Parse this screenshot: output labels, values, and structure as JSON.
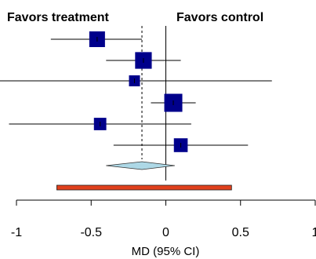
{
  "chart_data": {
    "type": "forest",
    "header_left": "Favors treatment",
    "header_right": "Favors control",
    "xlabel": "MD (95% CI)",
    "xlim": [
      -1,
      1
    ],
    "xticks": [
      -1,
      -0.5,
      0,
      0.5,
      1
    ],
    "xtick_labels": [
      "-1",
      "-0.5",
      "0",
      "0.5",
      "1"
    ],
    "reference_line": 0,
    "pooled_estimate_line": -0.16,
    "studies": [
      {
        "estimate": -0.46,
        "ci": [
          -0.77,
          -0.16
        ],
        "weight": 1.0
      },
      {
        "estimate": -0.15,
        "ci": [
          -0.4,
          0.1
        ],
        "weight": 1.1
      },
      {
        "estimate": -0.21,
        "ci": [
          -1.12,
          0.71
        ],
        "weight": 0.5
      },
      {
        "estimate": 0.05,
        "ci": [
          -0.1,
          0.2
        ],
        "weight": 1.25
      },
      {
        "estimate": -0.44,
        "ci": [
          -1.05,
          0.17
        ],
        "weight": 0.65
      },
      {
        "estimate": 0.1,
        "ci": [
          -0.35,
          0.55
        ],
        "weight": 0.8
      }
    ],
    "pooled": {
      "estimate": -0.16,
      "ci": [
        -0.4,
        0.06
      ]
    },
    "prediction_interval": [
      -0.73,
      0.44
    ],
    "colors": {
      "square": "#00008b",
      "diamond_fill": "#add8e6",
      "interval_fill": "#e0401c",
      "line": "#000000"
    }
  }
}
